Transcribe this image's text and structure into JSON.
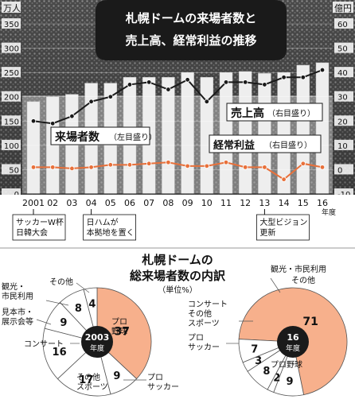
{
  "top_title": [
    "札幌ドームの来場者数と",
    "売上高、経常利益の推移"
  ],
  "left_unit": "万人",
  "right_unit": "億円",
  "x_unit": "年度",
  "labels": {
    "attendance": "来場者数",
    "attendance_axis": "（左目盛り）",
    "sales": "売上高",
    "sales_axis": "（右目盛り）",
    "profit": "経常利益",
    "profit_axis": "（右目盛り）"
  },
  "events": [
    {
      "x": "2001",
      "lines": [
        "サッカーW杯",
        "日韓大会"
      ]
    },
    {
      "x": "04",
      "lines": [
        "日ハムが",
        "本拠地を置く"
      ]
    },
    {
      "x": "13",
      "lines": [
        "大型ビジョン",
        "更新"
      ]
    }
  ],
  "bottom_title": [
    "札幌ドームの",
    "総来場者数の内訳"
  ],
  "bottom_unit": "（単位%）",
  "pie_2003": {
    "center": [
      "2003",
      "年度"
    ],
    "slices": [
      {
        "label": "プロ野球",
        "value": 37
      },
      {
        "label": "プロサッカー",
        "value": 9
      },
      {
        "label": "その他スポーツ",
        "value": 17
      },
      {
        "label": "コンサート",
        "value": 16
      },
      {
        "label": "見本市・展示会等",
        "value": 9
      },
      {
        "label": "観光・市民利用",
        "value": 8
      },
      {
        "label": "その他",
        "value": 4
      }
    ]
  },
  "pie_2016": {
    "center": [
      "16",
      "年度"
    ],
    "slices": [
      {
        "label": "プロ野球",
        "value": 71
      },
      {
        "label": "プロサッカー",
        "value": 9
      },
      {
        "label": "その他スポーツ",
        "value": 2
      },
      {
        "label": "コンサート",
        "value": 8
      },
      {
        "label": "観光・市民利用",
        "value": 3
      },
      {
        "label": "その他",
        "value": 7
      }
    ]
  },
  "colors": {
    "bar": "#eeeeee",
    "sales_line": "#1a1a1a",
    "profit_line": "#e8703a",
    "baseball_slice": "#f7b08c",
    "other_slice": "#ffffff",
    "title_bg": "#1a1a1a"
  },
  "chart_data": {
    "type": "bar",
    "categories": [
      "2001",
      "02",
      "03",
      "04",
      "05",
      "06",
      "07",
      "08",
      "09",
      "10",
      "11",
      "12",
      "13",
      "14",
      "15",
      "16"
    ],
    "left_ticks": [
      "350",
      "300",
      "250",
      "200",
      "150",
      "100",
      "50",
      "0"
    ],
    "right_ticks": [
      "60",
      "50",
      "40",
      "30",
      "20",
      "10",
      "0",
      "-10"
    ],
    "ylim_left": [
      0,
      350
    ],
    "ylim_right": [
      -10,
      60
    ],
    "series": [
      {
        "name": "来場者数",
        "axis": "left",
        "type": "bar",
        "values": [
          190,
          200,
          205,
          228,
          228,
          240,
          240,
          240,
          250,
          240,
          250,
          252,
          248,
          250,
          265,
          270
        ]
      },
      {
        "name": "売上高",
        "axis": "right",
        "type": "line",
        "values": [
          20,
          19,
          22,
          28,
          30,
          35,
          36,
          33,
          37,
          28,
          36,
          36,
          35,
          38,
          38,
          41
        ]
      },
      {
        "name": "経常利益",
        "axis": "right",
        "type": "line",
        "values": [
          1,
          1,
          0.5,
          1,
          2,
          2,
          2.5,
          3,
          1.5,
          1.5,
          3,
          1,
          1,
          -4,
          2.5,
          1
        ]
      }
    ]
  }
}
